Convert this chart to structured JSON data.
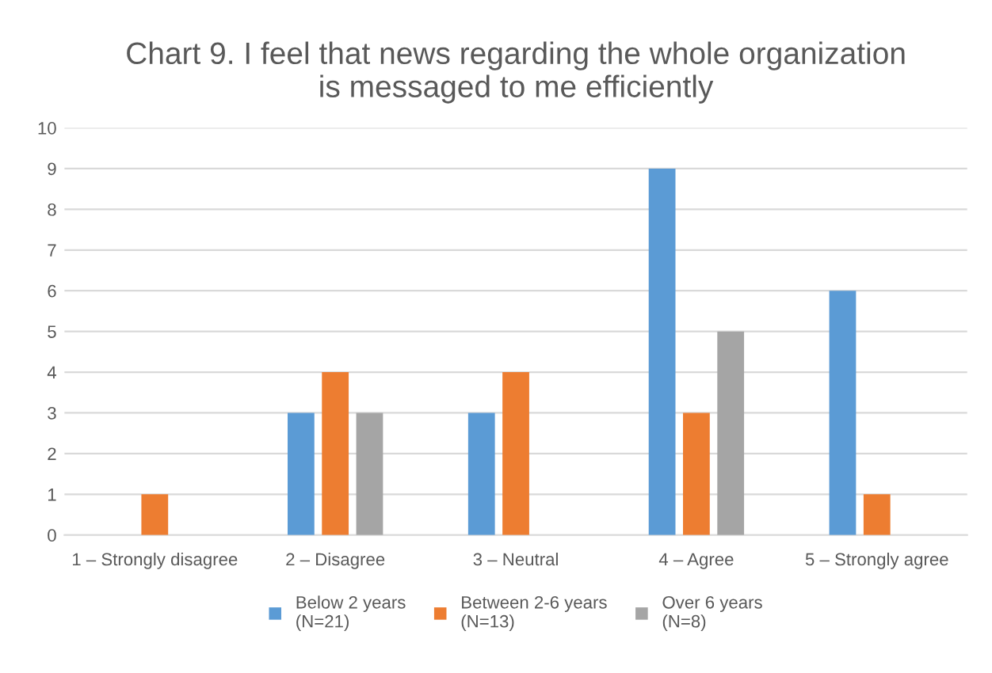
{
  "chart_data": {
    "type": "bar",
    "title": "Chart 9. I feel that news regarding the whole organization\nis messaged to me efficiently",
    "categories": [
      "1 – Strongly disagree",
      "2 – Disagree",
      "3 – Neutral",
      "4 – Agree",
      "5 – Strongly agree"
    ],
    "series": [
      {
        "name": "Below 2 years\n(N=21)",
        "color": "#5b9bd5",
        "values": [
          0,
          3,
          3,
          9,
          6
        ]
      },
      {
        "name": "Between 2-6 years\n(N=13)",
        "color": "#ed7d31",
        "values": [
          1,
          4,
          4,
          3,
          1
        ]
      },
      {
        "name": "Over 6 years\n(N=8)",
        "color": "#a5a5a5",
        "values": [
          0,
          3,
          0,
          5,
          0
        ]
      }
    ],
    "ylim": [
      0,
      10
    ],
    "yticks": [
      0,
      1,
      2,
      3,
      4,
      5,
      6,
      7,
      8,
      9,
      10
    ],
    "grid": "y",
    "legend": "bottom"
  }
}
